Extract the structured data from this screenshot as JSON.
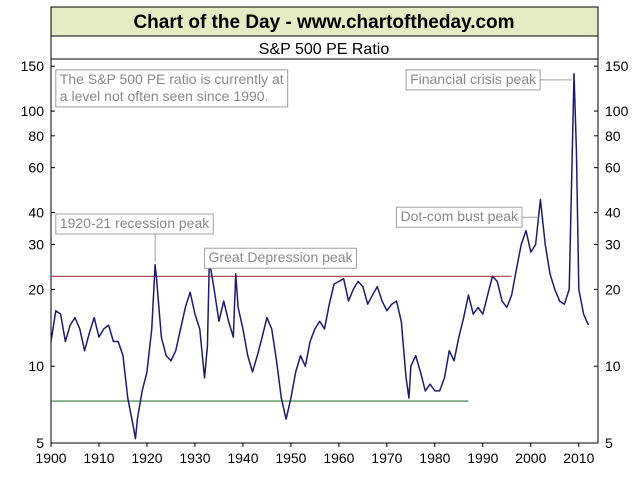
{
  "header": {
    "banner": "Chart of the Day - www.chartoftheday.com"
  },
  "colors": {
    "banner_bg": "#e5ebc2",
    "series": "#1c1c6e",
    "upper_ref": "#b05050",
    "lower_ref": "#2e7d32",
    "annotation_text": "#8a8a8a",
    "annotation_border": "#a0a0a0"
  },
  "chart_data": {
    "type": "line",
    "title": "S&P 500 PE Ratio",
    "xlabel": "",
    "ylabel": "",
    "scale": "log",
    "xlim": [
      1900,
      2014
    ],
    "ylim": [
      5,
      160
    ],
    "grid": false,
    "x_ticks": [
      "1900",
      "1910",
      "1920",
      "1930",
      "1940",
      "1950",
      "1960",
      "1970",
      "1980",
      "1990",
      "2000",
      "2010"
    ],
    "y_ticks": [
      5,
      10,
      20,
      30,
      40,
      60,
      80,
      100,
      150
    ],
    "series": [
      {
        "values": [
          [
            1900,
            12.5
          ],
          [
            1901,
            16.5
          ],
          [
            1902,
            16
          ],
          [
            1903,
            12.5
          ],
          [
            1904,
            14.5
          ],
          [
            1905,
            15.5
          ],
          [
            1906,
            14
          ],
          [
            1907,
            11.5
          ],
          [
            1908,
            13.5
          ],
          [
            1909,
            15.5
          ],
          [
            1910,
            13
          ],
          [
            1911,
            14
          ],
          [
            1912,
            14.5
          ],
          [
            1913,
            12.5
          ],
          [
            1914,
            12.5
          ],
          [
            1915,
            11
          ],
          [
            1916,
            7.5
          ],
          [
            1917,
            6
          ],
          [
            1917.6,
            5.2
          ],
          [
            1918,
            6.2
          ],
          [
            1919,
            8
          ],
          [
            1920,
            9.5
          ],
          [
            1921,
            14
          ],
          [
            1921.7,
            25
          ],
          [
            1922,
            22
          ],
          [
            1923,
            13
          ],
          [
            1924,
            11
          ],
          [
            1925,
            10.5
          ],
          [
            1926,
            11.5
          ],
          [
            1927,
            14
          ],
          [
            1928,
            17
          ],
          [
            1929,
            19.5
          ],
          [
            1930,
            16
          ],
          [
            1931,
            14
          ],
          [
            1932,
            9
          ],
          [
            1932.6,
            12
          ],
          [
            1933,
            26
          ],
          [
            1934,
            20
          ],
          [
            1935,
            15
          ],
          [
            1936,
            18
          ],
          [
            1937,
            15
          ],
          [
            1938,
            13
          ],
          [
            1938.5,
            23
          ],
          [
            1939,
            17
          ],
          [
            1940,
            14
          ],
          [
            1941,
            11
          ],
          [
            1942,
            9.5
          ],
          [
            1943,
            11
          ],
          [
            1944,
            13
          ],
          [
            1945,
            15.5
          ],
          [
            1946,
            14
          ],
          [
            1947,
            10.5
          ],
          [
            1948,
            7.5
          ],
          [
            1949,
            6.2
          ],
          [
            1950,
            7.5
          ],
          [
            1951,
            9.5
          ],
          [
            1952,
            11
          ],
          [
            1953,
            10
          ],
          [
            1954,
            12.5
          ],
          [
            1955,
            14
          ],
          [
            1956,
            15
          ],
          [
            1957,
            14
          ],
          [
            1958,
            17.5
          ],
          [
            1959,
            21
          ],
          [
            1960,
            21.5
          ],
          [
            1961,
            22
          ],
          [
            1962,
            18
          ],
          [
            1963,
            20
          ],
          [
            1964,
            21.5
          ],
          [
            1965,
            20.5
          ],
          [
            1966,
            17.5
          ],
          [
            1967,
            19
          ],
          [
            1968,
            20.5
          ],
          [
            1969,
            18
          ],
          [
            1970,
            16.5
          ],
          [
            1971,
            17.5
          ],
          [
            1972,
            18
          ],
          [
            1973,
            15
          ],
          [
            1974,
            9
          ],
          [
            1974.6,
            7.5
          ],
          [
            1975,
            10
          ],
          [
            1976,
            11
          ],
          [
            1977,
            9.5
          ],
          [
            1978,
            8
          ],
          [
            1979,
            8.5
          ],
          [
            1980,
            8
          ],
          [
            1981,
            8
          ],
          [
            1982,
            9
          ],
          [
            1983,
            11.5
          ],
          [
            1984,
            10.5
          ],
          [
            1985,
            13
          ],
          [
            1986,
            15.5
          ],
          [
            1987,
            19
          ],
          [
            1988,
            16
          ],
          [
            1989,
            17
          ],
          [
            1990,
            16
          ],
          [
            1991,
            19
          ],
          [
            1992,
            22.5
          ],
          [
            1993,
            21.5
          ],
          [
            1994,
            18
          ],
          [
            1995,
            17
          ],
          [
            1996,
            19
          ],
          [
            1997,
            24
          ],
          [
            1998,
            30
          ],
          [
            1999,
            34
          ],
          [
            2000,
            28
          ],
          [
            2001,
            30
          ],
          [
            2002,
            45
          ],
          [
            2003,
            30
          ],
          [
            2004,
            23
          ],
          [
            2005,
            20
          ],
          [
            2006,
            18
          ],
          [
            2007,
            17.5
          ],
          [
            2008,
            20
          ],
          [
            2009,
            140
          ],
          [
            2009.5,
            70
          ],
          [
            2010,
            20
          ],
          [
            2011,
            16
          ],
          [
            2012,
            14.5
          ]
        ]
      }
    ],
    "reference_lines": [
      {
        "y": 22.5,
        "x_start": 1900,
        "x_end": 1996,
        "color": "#b05050"
      },
      {
        "y": 7.3,
        "x_start": 1900,
        "x_end": 1987,
        "color": "#2e7d32"
      }
    ],
    "annotations": [
      {
        "lines": [
          "The S&P 500 PE ratio is currently at",
          "a level not often seen since 1990."
        ],
        "x": 1901,
        "y": 145
      },
      {
        "lines": [
          "Financial crisis peak"
        ],
        "x": 1974,
        "y": 145,
        "point": [
          2009,
          140
        ]
      },
      {
        "lines": [
          "1920-21 recession peak"
        ],
        "x": 1901,
        "y": 39.5,
        "point": [
          1921.7,
          25
        ]
      },
      {
        "lines": [
          "Great Depression peak"
        ],
        "x": 1932,
        "y": 29,
        "point": [
          1933,
          26
        ]
      },
      {
        "lines": [
          "Dot-com bust peak"
        ],
        "x": 1972,
        "y": 42,
        "point": [
          2002,
          45
        ]
      }
    ]
  }
}
